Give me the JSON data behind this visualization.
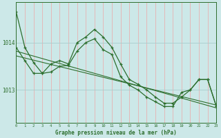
{
  "title": "Graphe pression niveau de la mer (hPa)",
  "background_color": "#cce8e8",
  "grid_color_v": "#e8b0b0",
  "grid_color_h": "#a8cccc",
  "line_color": "#2d6e2d",
  "xlim": [
    0,
    23
  ],
  "ylim": [
    1012.3,
    1014.85
  ],
  "yticks": [
    1013,
    1014
  ],
  "xticks": [
    0,
    1,
    2,
    3,
    4,
    5,
    6,
    7,
    8,
    9,
    10,
    11,
    12,
    13,
    14,
    15,
    16,
    17,
    18,
    19,
    20,
    21,
    22,
    23
  ],
  "series1": [
    1014.65,
    1013.9,
    1013.58,
    1013.35,
    1013.38,
    1013.5,
    1013.52,
    1013.82,
    1014.0,
    1014.08,
    1013.85,
    1013.75,
    1013.28,
    1013.1,
    1013.0,
    1012.85,
    1012.75,
    1012.65,
    1012.65,
    1012.95,
    1013.0,
    1013.22,
    1013.22,
    1012.65
  ],
  "series2": [
    1013.9,
    1013.62,
    1013.35,
    1013.35,
    1013.55,
    1013.62,
    1013.55,
    1014.0,
    1014.12,
    1014.28,
    1014.12,
    1013.9,
    1013.55,
    1013.22,
    1013.12,
    1013.0,
    1012.85,
    1012.72,
    1012.72,
    1012.85,
    1013.0,
    1013.22,
    1013.22,
    1012.65
  ],
  "trend1_x": [
    0,
    23
  ],
  "trend1_y": [
    1013.82,
    1012.62
  ],
  "trend2_x": [
    0,
    23
  ],
  "trend2_y": [
    1013.72,
    1012.68
  ]
}
